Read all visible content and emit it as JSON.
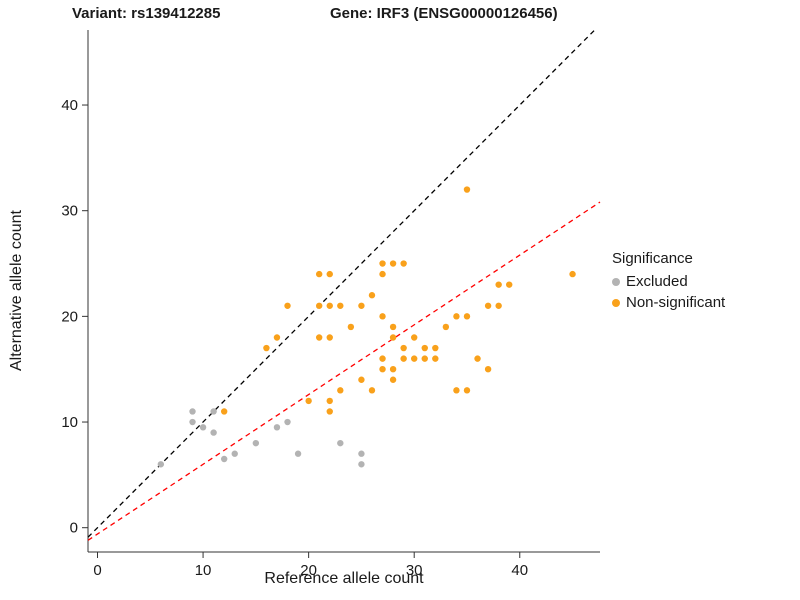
{
  "chart_data": {
    "type": "scatter",
    "title_left": "Variant: rs139412285",
    "title_right": "Gene: IRF3 (ENSG00000126456)",
    "xlabel": "Reference allele count",
    "ylabel": "Alternative allele count",
    "xlim": [
      -0.9,
      47.6
    ],
    "ylim": [
      -2.3,
      47.1
    ],
    "x_ticks": [
      0,
      10,
      20,
      30,
      40
    ],
    "y_ticks": [
      0,
      10,
      20,
      30,
      40
    ],
    "grid": false,
    "legend": {
      "title": "Significance",
      "position": "right",
      "items": [
        {
          "label": "Excluded",
          "color": "#B3B3B3"
        },
        {
          "label": "Non-significant",
          "color": "#F9A11B"
        }
      ]
    },
    "series": [
      {
        "name": "Excluded",
        "color": "#B3B3B3",
        "points": [
          [
            6,
            6
          ],
          [
            9,
            10
          ],
          [
            9,
            11
          ],
          [
            10,
            9.5
          ],
          [
            11,
            9
          ],
          [
            11,
            11
          ],
          [
            12,
            6.5
          ],
          [
            13,
            7
          ],
          [
            15,
            8
          ],
          [
            17,
            9.5
          ],
          [
            18,
            10
          ],
          [
            19,
            7
          ],
          [
            23,
            8
          ],
          [
            25,
            6
          ],
          [
            25,
            7
          ]
        ]
      },
      {
        "name": "Non-significant",
        "color": "#F9A11B",
        "points": [
          [
            12,
            11
          ],
          [
            16,
            17
          ],
          [
            17,
            18
          ],
          [
            18,
            21
          ],
          [
            20,
            12
          ],
          [
            21,
            18
          ],
          [
            21,
            21
          ],
          [
            21,
            24
          ],
          [
            22,
            11
          ],
          [
            22,
            12
          ],
          [
            22,
            18
          ],
          [
            22,
            21
          ],
          [
            22,
            24
          ],
          [
            23,
            13
          ],
          [
            23,
            21
          ],
          [
            24,
            19
          ],
          [
            25,
            14
          ],
          [
            25,
            21
          ],
          [
            26,
            13
          ],
          [
            26,
            22
          ],
          [
            27,
            15
          ],
          [
            27,
            16
          ],
          [
            27,
            20
          ],
          [
            27,
            24
          ],
          [
            27,
            25
          ],
          [
            28,
            14
          ],
          [
            28,
            15
          ],
          [
            28,
            18
          ],
          [
            28,
            19
          ],
          [
            28,
            25
          ],
          [
            29,
            16
          ],
          [
            29,
            17
          ],
          [
            29,
            25
          ],
          [
            30,
            16
          ],
          [
            30,
            18
          ],
          [
            31,
            16
          ],
          [
            31,
            17
          ],
          [
            32,
            16
          ],
          [
            32,
            17
          ],
          [
            33,
            19
          ],
          [
            34,
            13
          ],
          [
            34,
            20
          ],
          [
            35,
            13
          ],
          [
            35,
            20
          ],
          [
            35,
            32
          ],
          [
            36,
            16
          ],
          [
            37,
            15
          ],
          [
            37,
            21
          ],
          [
            38,
            21
          ],
          [
            38,
            23
          ],
          [
            39,
            23
          ],
          [
            45,
            24
          ]
        ]
      }
    ],
    "lines": [
      {
        "name": "identity-line",
        "slope": 1,
        "intercept": 0,
        "color": "#000000",
        "dash": "5,4"
      },
      {
        "name": "fit-line",
        "slope": 0.66,
        "intercept": -0.6,
        "color": "#FF0000",
        "dash": "5,4"
      }
    ]
  }
}
